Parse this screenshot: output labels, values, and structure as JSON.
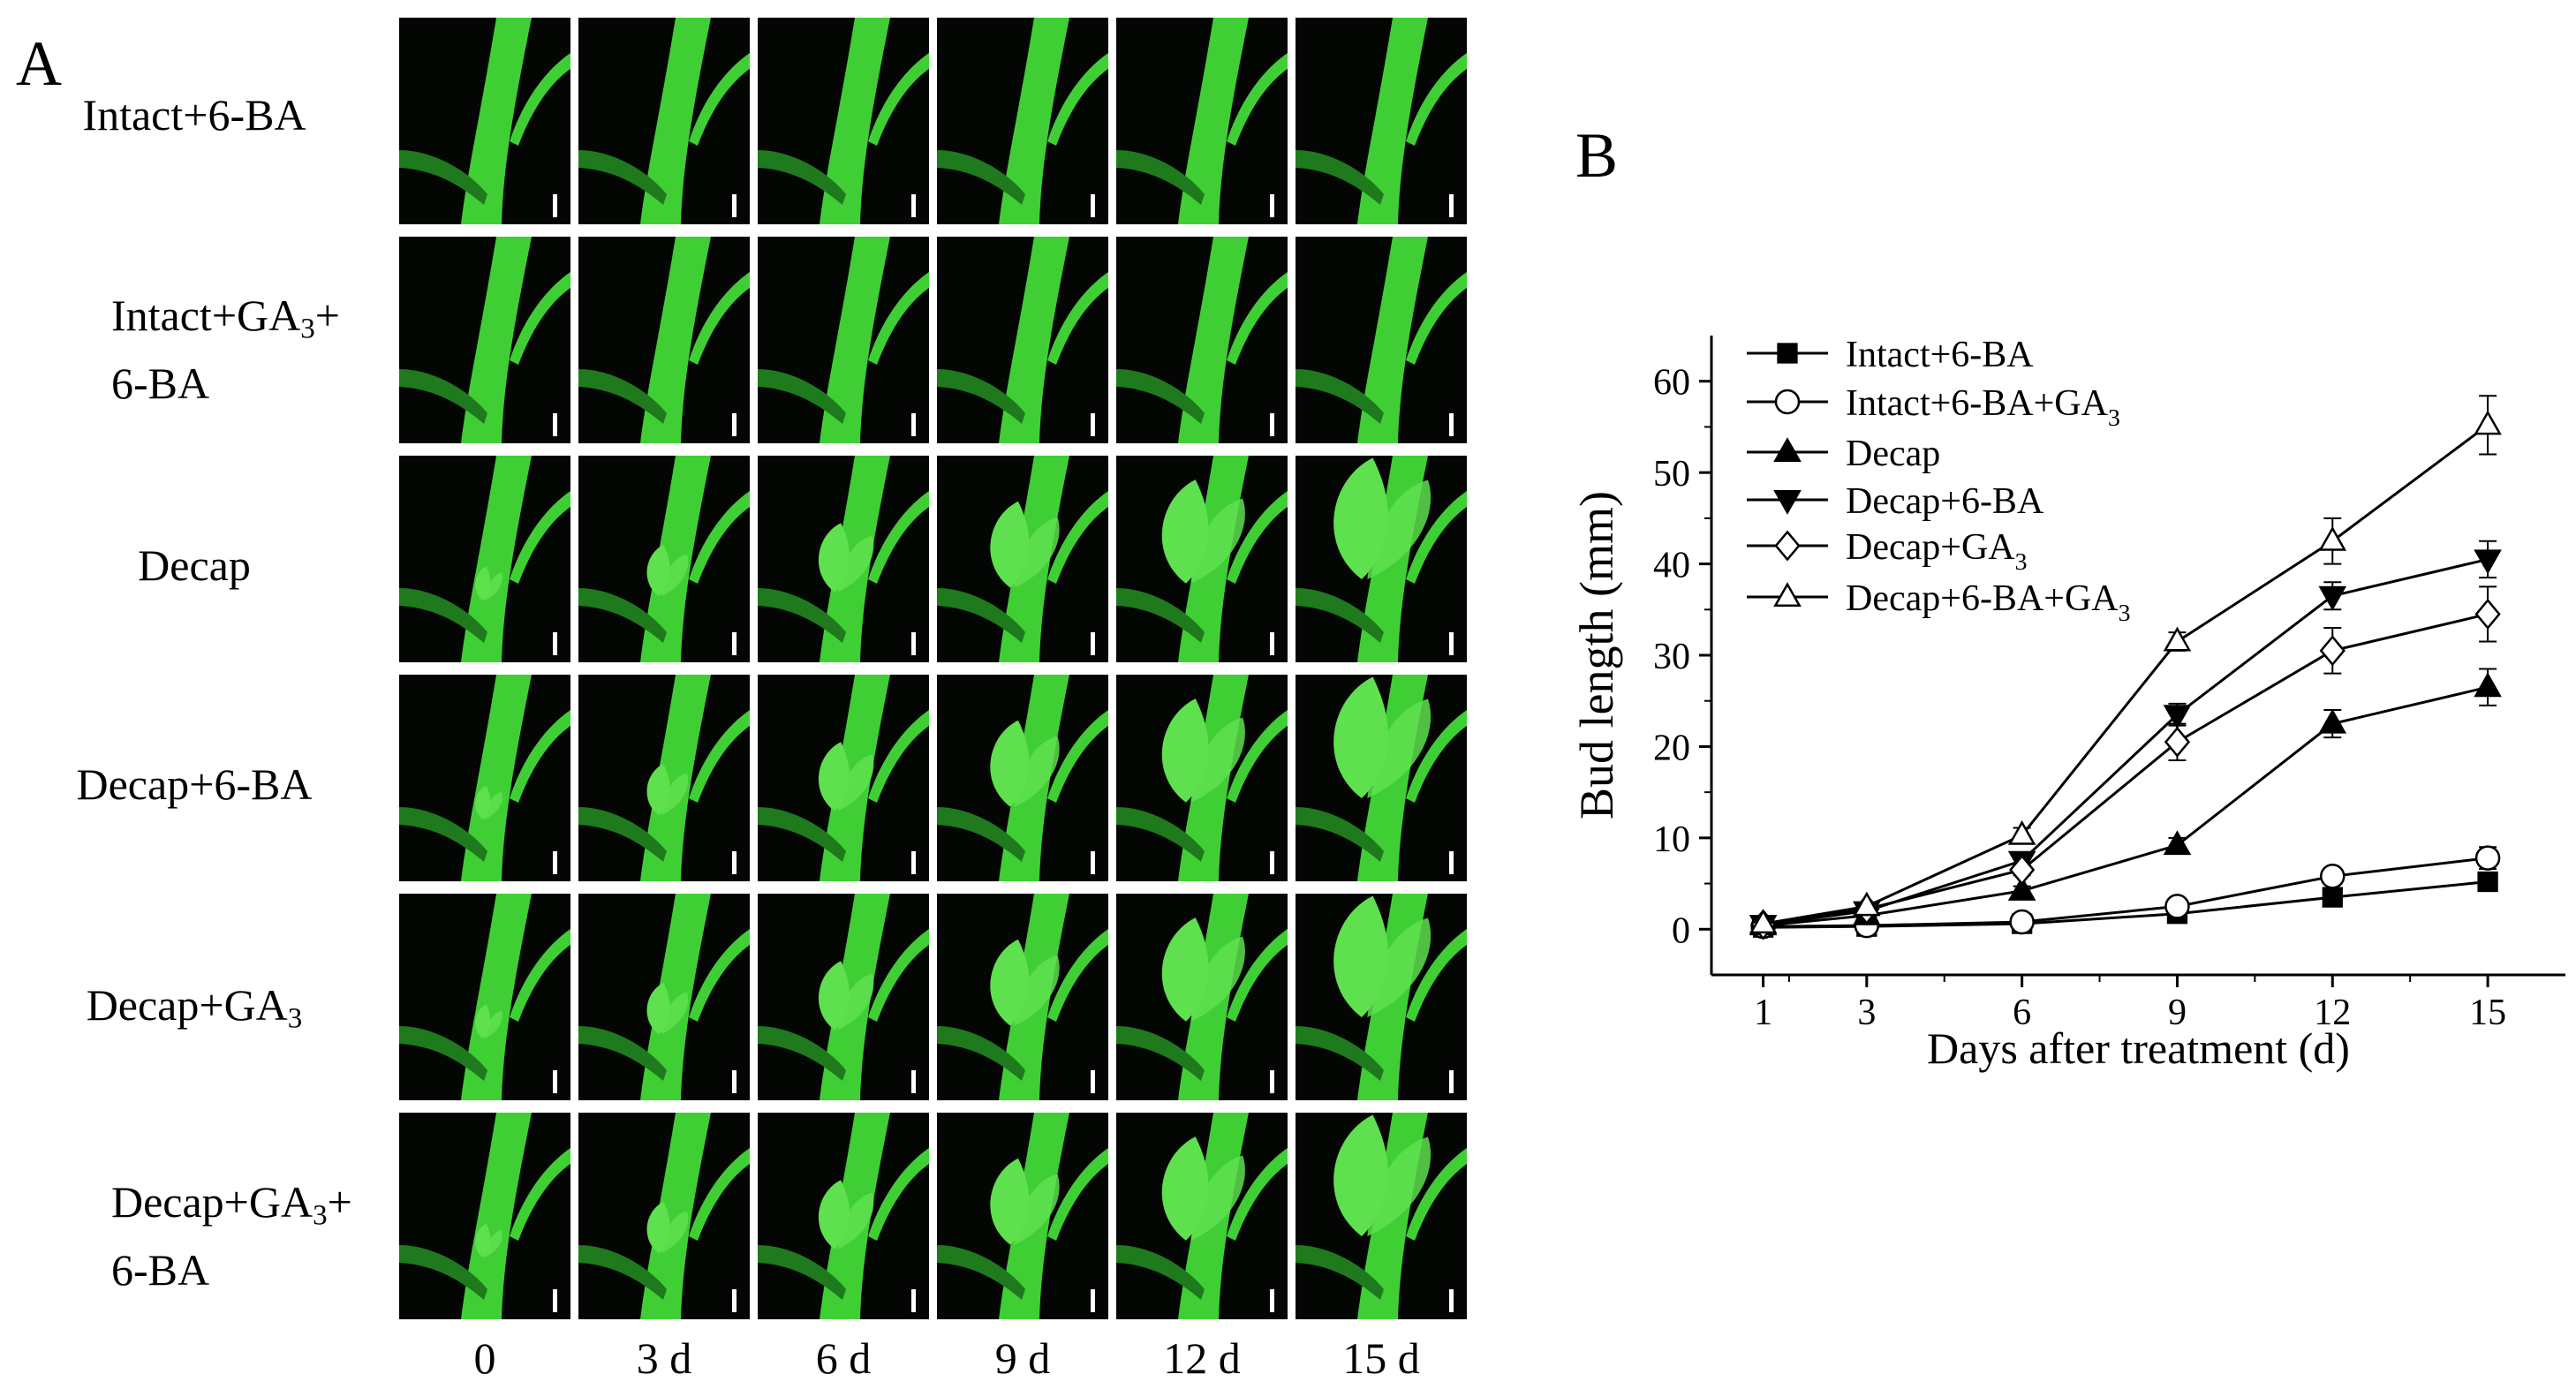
{
  "panel_a": {
    "letter": "A",
    "rows": [
      {
        "label_main": "Intact+6-BA",
        "label_sub": "",
        "label_tail": "",
        "stage": "intact"
      },
      {
        "label_main": "Intact+GA",
        "label_sub": "3",
        "label_tail": "+\n6-BA",
        "stage": "intact"
      },
      {
        "label_main": "Decap",
        "label_sub": "",
        "label_tail": "",
        "stage": "decap"
      },
      {
        "label_main": "Decap+6-BA",
        "label_sub": "",
        "label_tail": "",
        "stage": "decap"
      },
      {
        "label_main": "Decap+GA",
        "label_sub": "3",
        "label_tail": "",
        "stage": "decap"
      },
      {
        "label_main": "Decap+GA",
        "label_sub": "3",
        "label_tail": "+\n6-BA",
        "stage": "decap"
      }
    ],
    "columns": [
      "0",
      "3 d",
      "6 d",
      "9 d",
      "12 d",
      "15 d"
    ],
    "colors": {
      "stem": "#3fcf35",
      "stem_dark": "#1e7a1c",
      "leaf": "#5fe04f",
      "background": "#030603",
      "scale_bar": "#ffffff"
    }
  },
  "panel_b": {
    "letter": "B"
  },
  "chart_data": {
    "type": "line",
    "xlabel": "Days after treatment (d)",
    "ylabel": "Bud length (mm)",
    "x": [
      1,
      3,
      6,
      9,
      12,
      15
    ],
    "x_ticks": [
      "1",
      "3",
      "6",
      "9",
      "12",
      "15"
    ],
    "y_ticks": [
      "0",
      "10",
      "20",
      "30",
      "40",
      "50",
      "60"
    ],
    "xlim": [
      0,
      16.5
    ],
    "ylim": [
      -5,
      65
    ],
    "legend_position": "top-left",
    "series": [
      {
        "name": "Intact+6-BA",
        "name_main": "Intact+6-BA",
        "name_sub": "",
        "marker": "square-filled",
        "values": [
          0.2,
          0.3,
          0.6,
          1.7,
          3.5,
          5.2
        ],
        "errors": [
          0.2,
          0.2,
          0.3,
          0.4,
          0.6,
          0.9
        ]
      },
      {
        "name": "Intact+6-BA+GA3",
        "name_main": "Intact+6-BA+GA",
        "name_sub": "3",
        "marker": "circle-open",
        "values": [
          0.3,
          0.4,
          0.8,
          2.5,
          5.8,
          7.8
        ],
        "errors": [
          0.2,
          0.2,
          0.3,
          0.5,
          0.8,
          1.2
        ]
      },
      {
        "name": "Decap",
        "name_main": "Decap",
        "name_sub": "",
        "marker": "triangle-up-filled",
        "values": [
          0.4,
          1.5,
          4.2,
          9.2,
          22.5,
          26.5
        ],
        "errors": [
          0.2,
          0.3,
          0.5,
          0.8,
          1.5,
          2.0
        ]
      },
      {
        "name": "Decap+6-BA",
        "name_main": "Decap+6-BA",
        "name_sub": "",
        "marker": "triangle-down-filled",
        "values": [
          0.5,
          2.0,
          7.5,
          23.5,
          36.5,
          40.5
        ],
        "errors": [
          0.2,
          0.3,
          0.6,
          1.2,
          1.5,
          2.0
        ]
      },
      {
        "name": "Decap+GA3",
        "name_main": "Decap+GA",
        "name_sub": "3",
        "marker": "diamond-open",
        "values": [
          0.5,
          2.2,
          6.5,
          20.5,
          30.5,
          34.5
        ],
        "errors": [
          0.2,
          0.3,
          0.6,
          2.0,
          2.5,
          3.0
        ]
      },
      {
        "name": "Decap+6-BA+GA3",
        "name_main": "Decap+6-BA+GA",
        "name_sub": "3",
        "marker": "triangle-up-open",
        "values": [
          0.6,
          2.5,
          10.3,
          31.5,
          42.5,
          55.2
        ],
        "errors": [
          0.2,
          0.3,
          0.8,
          1.0,
          2.5,
          3.2
        ]
      }
    ]
  }
}
